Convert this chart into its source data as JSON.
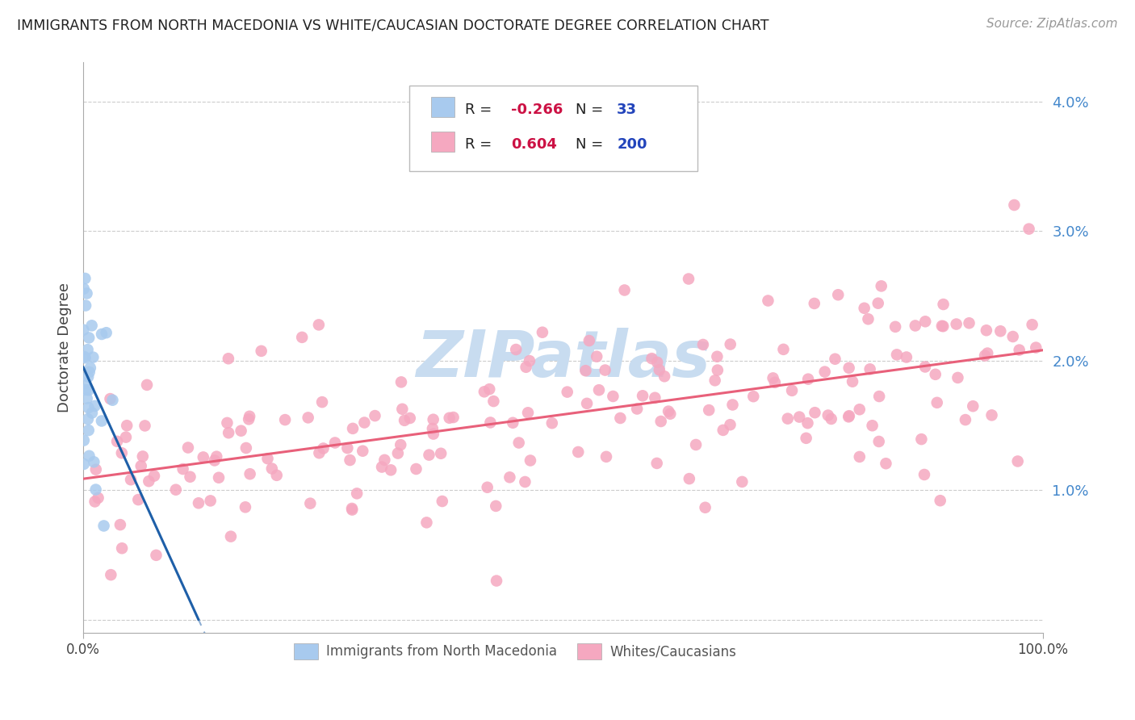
{
  "title": "IMMIGRANTS FROM NORTH MACEDONIA VS WHITE/CAUCASIAN DOCTORATE DEGREE CORRELATION CHART",
  "source": "Source: ZipAtlas.com",
  "ylabel": "Doctorate Degree",
  "xlim": [
    0.0,
    100.0
  ],
  "ylim": [
    -0.1,
    4.3
  ],
  "ymin_display": 0.0,
  "ymax_display": 4.0,
  "blue_color": "#A8CAEE",
  "pink_color": "#F5A8C0",
  "blue_line_color": "#1E5FA8",
  "pink_line_color": "#E8607A",
  "watermark_color": "#C8DCF0",
  "background_color": "#FFFFFF",
  "grid_color": "#CCCCCC",
  "ytick_color": "#4488CC",
  "xtick_color": "#444444",
  "r1": "-0.266",
  "n1": "33",
  "r2": "0.604",
  "n2": "200",
  "r_color": "#CC1144",
  "n_color": "#2244BB",
  "legend_text_color": "#222222"
}
